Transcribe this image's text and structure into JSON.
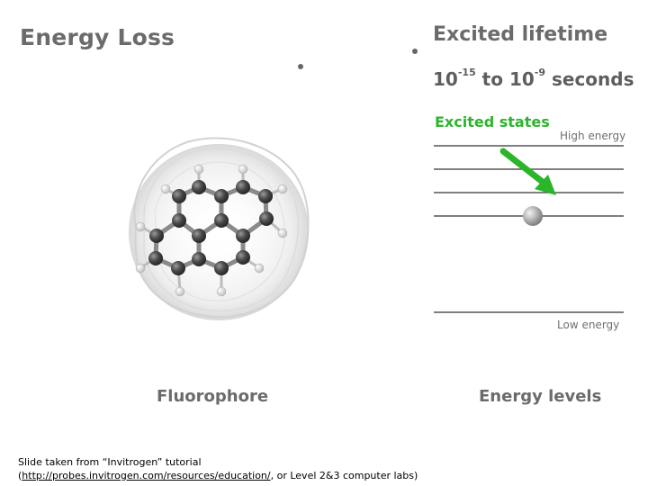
{
  "slide": {
    "title_left": "Energy Loss",
    "title_right": "Excited lifetime",
    "lifetime": {
      "lead": "10",
      "exp1": "-15",
      "mid": " to 10",
      "exp2": "-9",
      "tail": " seconds"
    },
    "excited_states_label": "Excited states",
    "high_energy_label": "High energy",
    "low_energy_label": "Low energy",
    "fluorophore_label": "Fluorophore",
    "energy_levels_label": "Energy levels",
    "credit": {
      "line1": "Slide taken from “Invitrogen” tutorial",
      "open_paren": "(",
      "link": "http://probes.invitrogen.com/resources/education/",
      "rest": ", or Level 2&3 computer labs)"
    }
  },
  "colors": {
    "accent_green": "#2bb52b",
    "title_gray": "#6b6b6b"
  },
  "icons": [
    "fluorophore-molecule-icon",
    "downward-arrow-icon",
    "electron-sphere-icon"
  ]
}
